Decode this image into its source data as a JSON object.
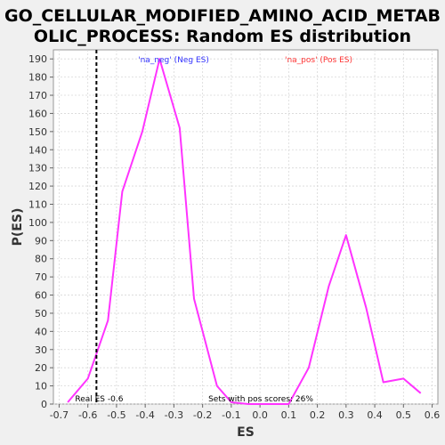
{
  "chart_data": {
    "type": "line",
    "title_lines": [
      "GO_CELLULAR_MODIFIED_AMINO_ACID_METAB",
      "OLIC_PROCESS: Random ES distribution"
    ],
    "xlabel": "ES",
    "ylabel": "P(ES)",
    "xlim": [
      -0.72,
      0.62
    ],
    "ylim": [
      0,
      195
    ],
    "x_ticks": [
      -0.7,
      -0.6,
      -0.5,
      -0.4,
      -0.3,
      -0.2,
      -0.1,
      0.0,
      0.1,
      0.2,
      0.3,
      0.4,
      0.5,
      0.6
    ],
    "x_tick_labels": [
      "-0.7",
      "-0.6",
      "-0.5",
      "-0.4",
      "-0.3",
      "-0.2",
      "-0.1",
      "0.0",
      "0.1",
      "0.2",
      "0.3",
      "0.4",
      "0.5",
      "0.6"
    ],
    "y_ticks": [
      0,
      10,
      20,
      30,
      40,
      50,
      60,
      70,
      80,
      90,
      100,
      110,
      120,
      130,
      140,
      150,
      160,
      170,
      180,
      190
    ],
    "grid": true,
    "series": [
      {
        "color": "#ff33ff",
        "x": [
          -0.67,
          -0.6,
          -0.53,
          -0.48,
          -0.41,
          -0.35,
          -0.28,
          -0.23,
          -0.15,
          -0.1,
          -0.04,
          0.1,
          0.17,
          0.24,
          0.3,
          0.37,
          0.43,
          0.5,
          0.56
        ],
        "y": [
          1,
          14,
          46,
          117,
          150,
          190,
          152,
          58,
          10,
          1,
          0,
          0,
          20,
          65,
          93,
          53,
          12,
          14,
          6
        ]
      }
    ],
    "real_es": {
      "x": -0.57,
      "label": "Real ES -0.6"
    },
    "legend": [
      {
        "label": "'na_neg' (Neg ES)",
        "color": "#3333ff"
      },
      {
        "label": "'na_pos' (Pos ES)",
        "color": "#ff3333"
      }
    ],
    "annotation": "Sets with pos scores: 26%"
  }
}
